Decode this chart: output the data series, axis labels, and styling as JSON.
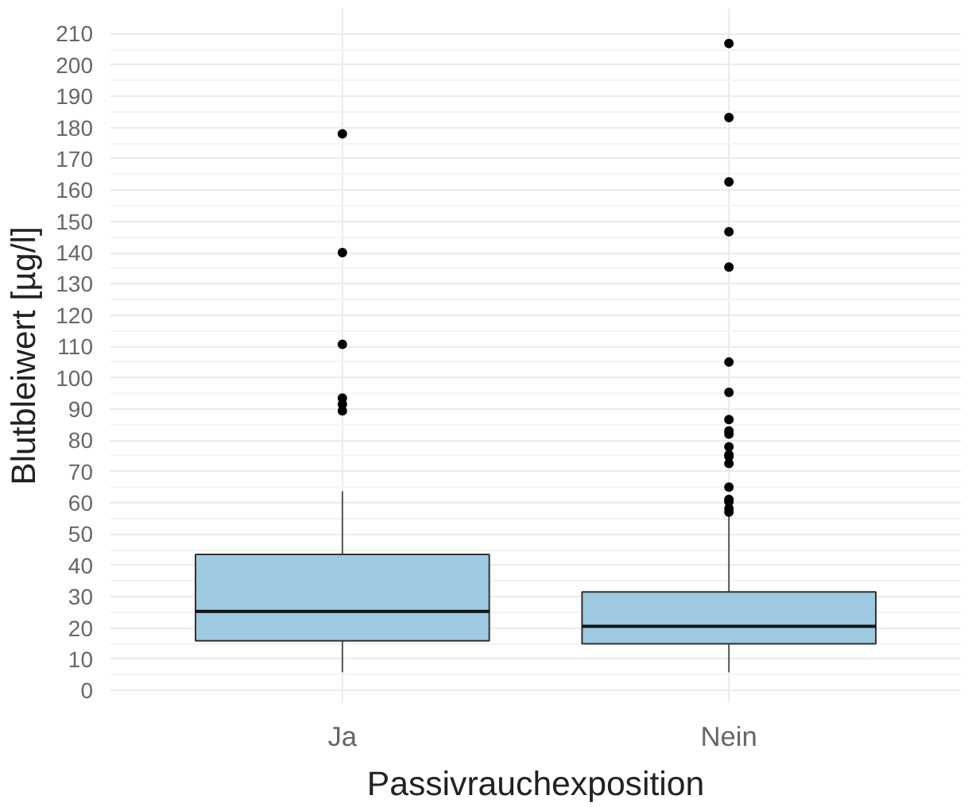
{
  "chart_data": {
    "type": "box",
    "xlabel": "Passivrauchexposition",
    "ylabel": "Blutbleiwert [µg/l]",
    "categories": [
      "Ja",
      "Nein"
    ],
    "series": [
      {
        "color": "#9ecae1",
        "boxes": [
          {
            "low": 5.8,
            "q1": 15.9,
            "median": 25.3,
            "q3": 43.5,
            "high": 63.7,
            "outliers": [
              178,
              140,
              110.7,
              93.5,
              91.5,
              89.4
            ]
          },
          {
            "low": 5.8,
            "q1": 14.9,
            "median": 20.5,
            "q3": 31.5,
            "high": 57,
            "outliers": [
              206.9,
              183.2,
              162.6,
              146.7,
              135.4,
              105,
              95.3,
              86.6,
              83,
              82,
              77.9,
              75.4,
              74.8,
              72.6,
              65,
              61.1,
              60.3,
              58.2,
              57
            ]
          }
        ]
      }
    ],
    "ylim": [
      -4,
      218
    ],
    "yticks": [
      0,
      10,
      20,
      30,
      40,
      50,
      60,
      70,
      80,
      90,
      100,
      110,
      120,
      130,
      140,
      150,
      160,
      170,
      180,
      190,
      200,
      210
    ],
    "grid": true,
    "marker": "circle"
  }
}
